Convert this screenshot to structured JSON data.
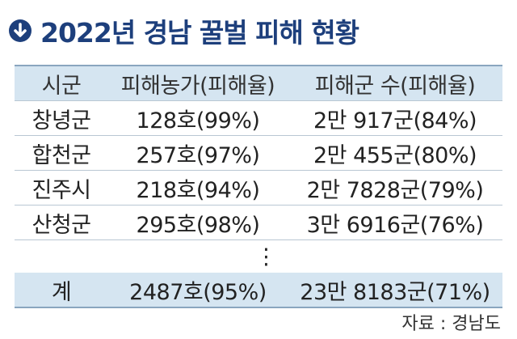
{
  "header": {
    "title": "2022년 경남 꿀벌 피해 현황"
  },
  "table": {
    "columns": [
      "시군",
      "피해농가(피해율)",
      "피해군 수(피해율)"
    ],
    "rows": [
      [
        "창녕군",
        "128호(99%)",
        "2만 917군(84%)"
      ],
      [
        "합천군",
        "257호(97%)",
        "2만 455군(80%)"
      ],
      [
        "진주시",
        "218호(94%)",
        "2만 7828군(79%)"
      ],
      [
        "산청군",
        "295호(98%)",
        "3만 6916군(76%)"
      ]
    ],
    "ellipsis": "⋮",
    "total": [
      "계",
      "2487호(95%)",
      "23만 8183군(71%)"
    ]
  },
  "source": "자료 : 경남도"
}
